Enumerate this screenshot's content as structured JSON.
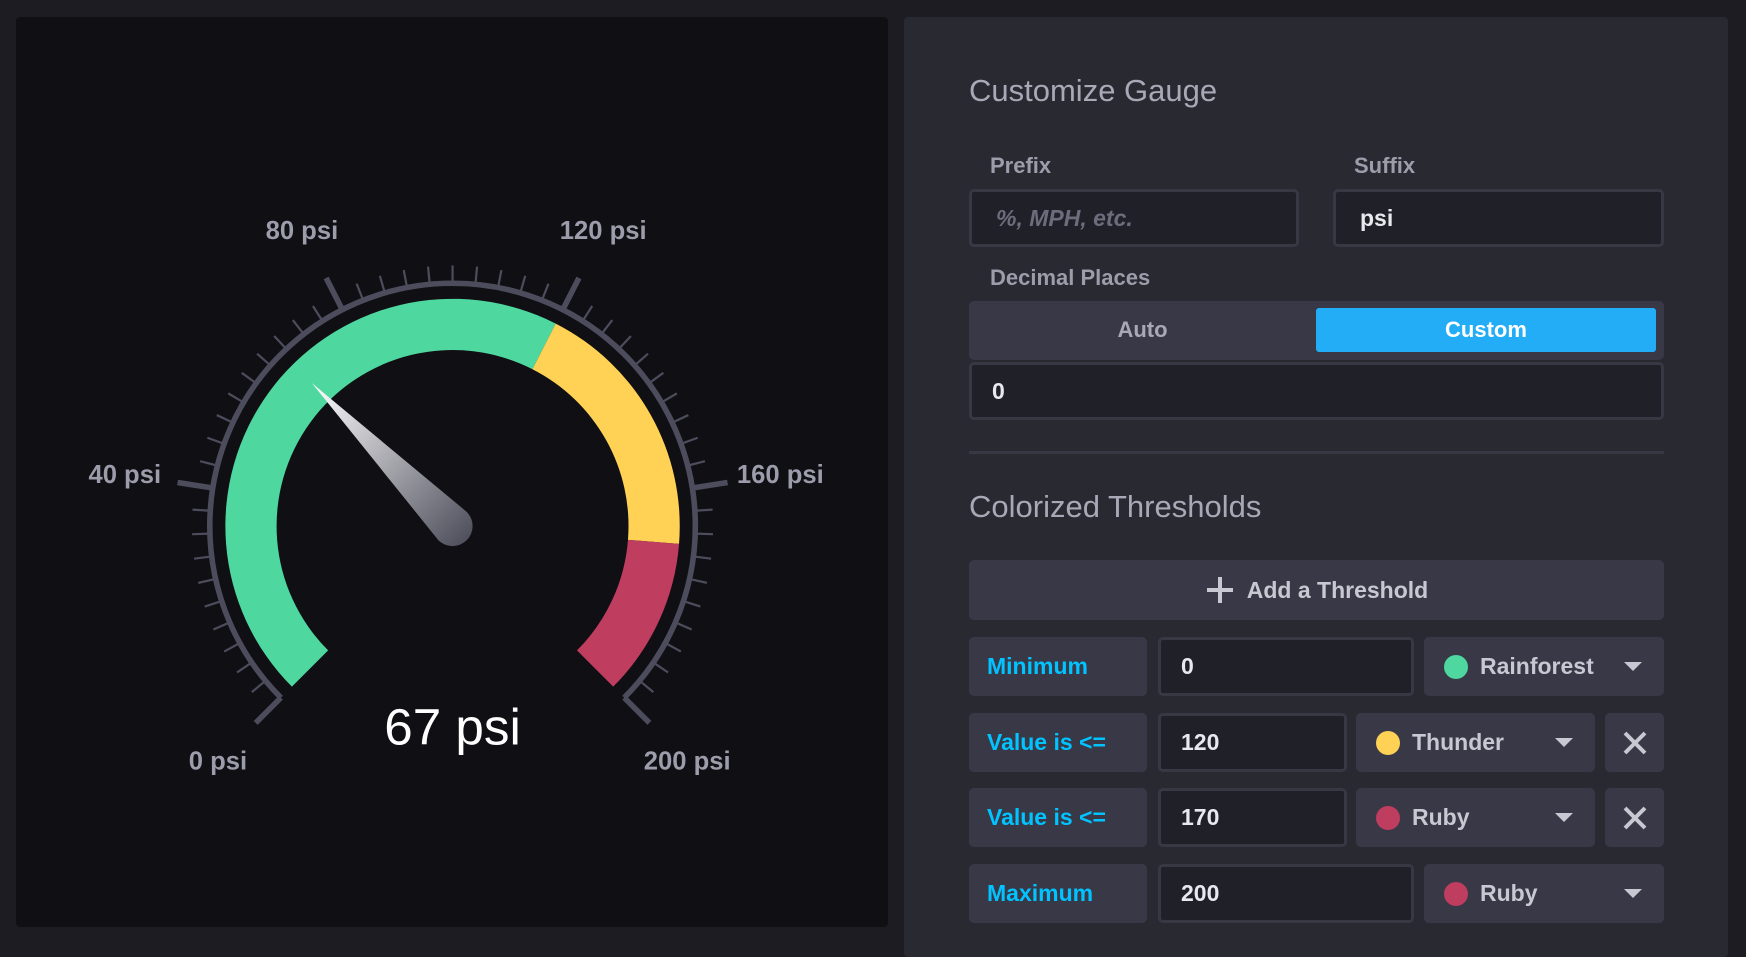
{
  "gauge": {
    "value": 67,
    "min": 0,
    "max": 200,
    "display_value": "67 psi",
    "major_labels": [
      "0 psi",
      "40 psi",
      "80 psi",
      "120 psi",
      "160 psi",
      "200 psi"
    ],
    "bands": [
      {
        "from": 0,
        "to": 120,
        "color": "#4ed8a0"
      },
      {
        "from": 120,
        "to": 170,
        "color": "#ffd255"
      },
      {
        "from": 170,
        "to": 200,
        "color": "#bf3d5e"
      }
    ]
  },
  "panel": {
    "title": "Customize Gauge",
    "prefix_label": "Prefix",
    "prefix_placeholder": "%, MPH, etc.",
    "prefix_value": "",
    "suffix_label": "Suffix",
    "suffix_value": "psi",
    "decimal_label": "Decimal Places",
    "decimal_auto": "Auto",
    "decimal_custom": "Custom",
    "decimal_selected": "Custom",
    "decimal_value": "0",
    "thresholds_title": "Colorized Thresholds",
    "add_threshold": "Add a Threshold",
    "rows": [
      {
        "label": "Minimum",
        "value": "0",
        "color_name": "Rainforest",
        "color": "#4ed8a0",
        "removable": false
      },
      {
        "label": "Value is <=",
        "value": "120",
        "color_name": "Thunder",
        "color": "#ffd255",
        "removable": true
      },
      {
        "label": "Value is <=",
        "value": "170",
        "color_name": "Ruby",
        "color": "#bf3d5e",
        "removable": true
      },
      {
        "label": "Maximum",
        "value": "200",
        "color_name": "Ruby",
        "color": "#bf3d5e",
        "removable": false
      }
    ]
  },
  "colors": {
    "accent": "#22adf6",
    "label": "#00c3ff"
  }
}
